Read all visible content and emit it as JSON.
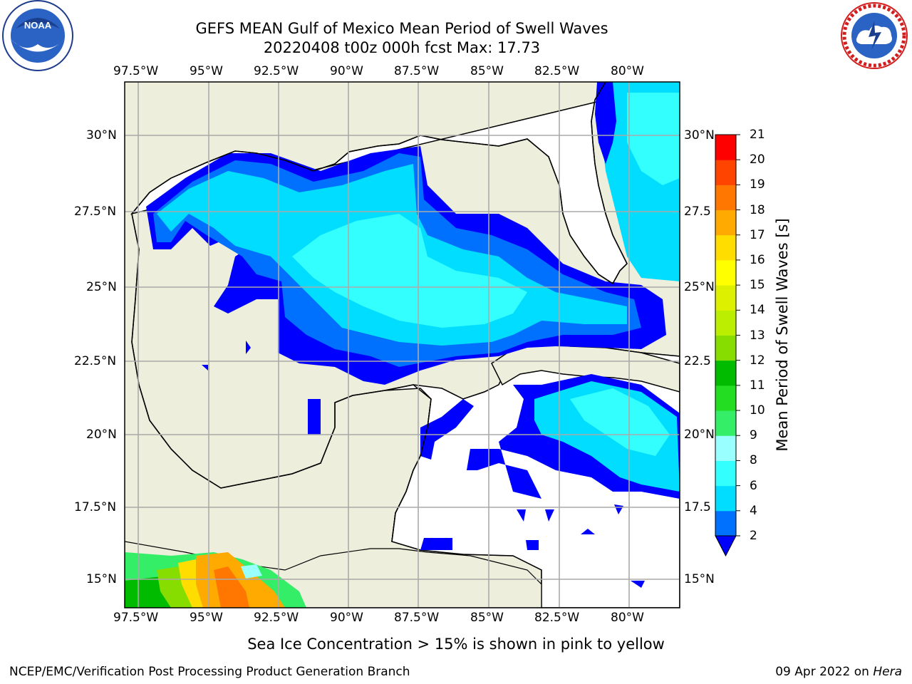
{
  "header": {
    "title_line1": "GEFS MEAN Gulf of Mexico Mean Period of Swell Waves",
    "title_line2": "20220408 t00z 000h fcst   Max: 17.73"
  },
  "logos": {
    "left": {
      "name": "NOAA",
      "text": "NOAA"
    },
    "right": {
      "name": "NATIONAL WEATHER SERVICE"
    }
  },
  "axes": {
    "lon_labels": [
      "97.5°W",
      "95°W",
      "92.5°W",
      "90°W",
      "87.5°W",
      "85°W",
      "82.5°W",
      "80°W"
    ],
    "lat_labels_left": [
      "30°N",
      "27.5°N",
      "25°N",
      "22.5°N",
      "20°N",
      "17.5°N",
      "15°N"
    ],
    "lat_labels_right": [
      "30°N",
      "27.5",
      "25°N",
      "22.5",
      "20°N",
      "17.5",
      "15°N"
    ]
  },
  "colorbar": {
    "label": "Mean Period of Swell Waves [s]",
    "ticks": [
      "2",
      "4",
      "6",
      "8",
      "9",
      "10",
      "11",
      "12",
      "13",
      "14",
      "15",
      "16",
      "17",
      "18",
      "19",
      "20",
      "21"
    ],
    "colors": [
      "#0000ff",
      "#0070ff",
      "#00ddff",
      "#33ffff",
      "#99ffff",
      "#33ee66",
      "#22dd22",
      "#00bb00",
      "#88dd00",
      "#bbee00",
      "#ddf000",
      "#ffff00",
      "#ffdd00",
      "#ffaa00",
      "#ff7700",
      "#ff4400",
      "#ff0000"
    ]
  },
  "colors": {
    "land": "#eeeedd",
    "ocean": "#ffffff",
    "grid": "#aaaaaa"
  },
  "notice": "Sea Ice Concentration > 15% is shown in pink to yellow",
  "footer": {
    "credit": "NCEP/EMC/Verification Post Processing Product Generation Branch",
    "date": "09 Apr 2022 on ",
    "machine": "Hera"
  }
}
